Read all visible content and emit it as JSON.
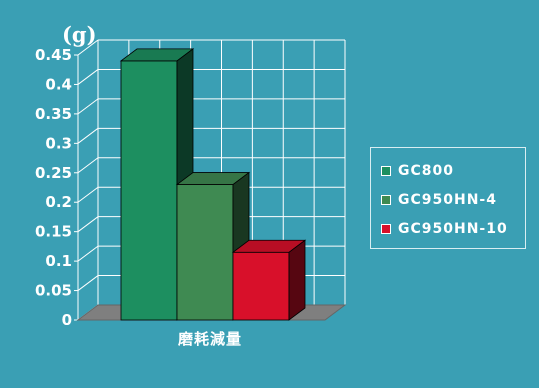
{
  "chart_data": {
    "type": "bar",
    "unit_label": "(g)",
    "categories": [
      "磨耗減量"
    ],
    "yticks": [
      "0",
      "0.05",
      "0.1",
      "0.15",
      "0.2",
      "0.25",
      "0.3",
      "0.35",
      "0.4",
      "0.45"
    ],
    "ylim": [
      0,
      0.45
    ],
    "grid": true,
    "legend_position": "right",
    "series": [
      {
        "name": "GC800",
        "values": [
          0.44
        ],
        "color": "#1d8f60"
      },
      {
        "name": "GC950HN-4",
        "values": [
          0.23
        ],
        "color": "#3f8a52"
      },
      {
        "name": "GC950HN-10",
        "values": [
          0.115
        ],
        "color": "#d8102a"
      }
    ]
  },
  "legend": {
    "items": [
      {
        "label": "GC800",
        "color": "#1d8f60"
      },
      {
        "label": "GC950HN-4",
        "color": "#3f8a52"
      },
      {
        "label": "GC950HN-10",
        "color": "#d8102a"
      }
    ]
  },
  "colors": {
    "background": "#3a9fb4",
    "grid": "#ffffff",
    "floor": "#7f7f7f"
  }
}
